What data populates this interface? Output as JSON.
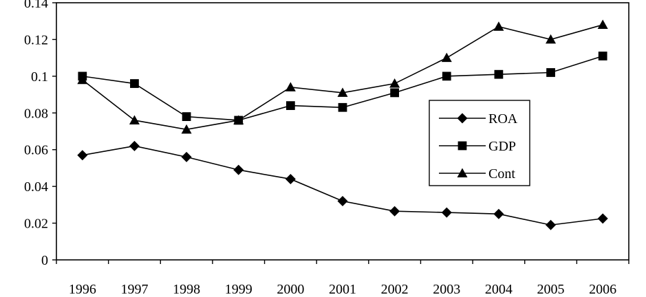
{
  "chart_data": {
    "type": "line",
    "categories": [
      "1996",
      "1997",
      "1998",
      "1999",
      "2000",
      "2001",
      "2002",
      "2003",
      "2004",
      "2005",
      "2006"
    ],
    "ylim": [
      0,
      0.14
    ],
    "yticks": [
      0,
      0.02,
      0.04,
      0.06,
      0.08,
      0.1,
      0.12,
      0.14
    ],
    "ytick_labels": [
      "0",
      "0.02",
      "0.04",
      "0.06",
      "0.08",
      "0.1",
      "0.12",
      "0.14"
    ],
    "grid": false,
    "legend_position": "right-center",
    "series": [
      {
        "name": "ROA",
        "marker": "diamond",
        "values": [
          0.057,
          0.062,
          0.056,
          0.049,
          0.044,
          0.032,
          0.0265,
          0.0258,
          0.025,
          0.019,
          0.0225
        ]
      },
      {
        "name": "GDP",
        "marker": "square",
        "values": [
          0.1,
          0.096,
          0.078,
          0.076,
          0.084,
          0.083,
          0.091,
          0.1,
          0.101,
          0.102,
          0.111
        ]
      },
      {
        "name": "Cont",
        "marker": "triangle",
        "values": [
          0.098,
          0.076,
          0.071,
          0.076,
          0.094,
          0.091,
          0.096,
          0.11,
          0.127,
          0.12,
          0.128
        ]
      }
    ]
  },
  "colors": {
    "line": "#000000",
    "background": "#ffffff"
  }
}
